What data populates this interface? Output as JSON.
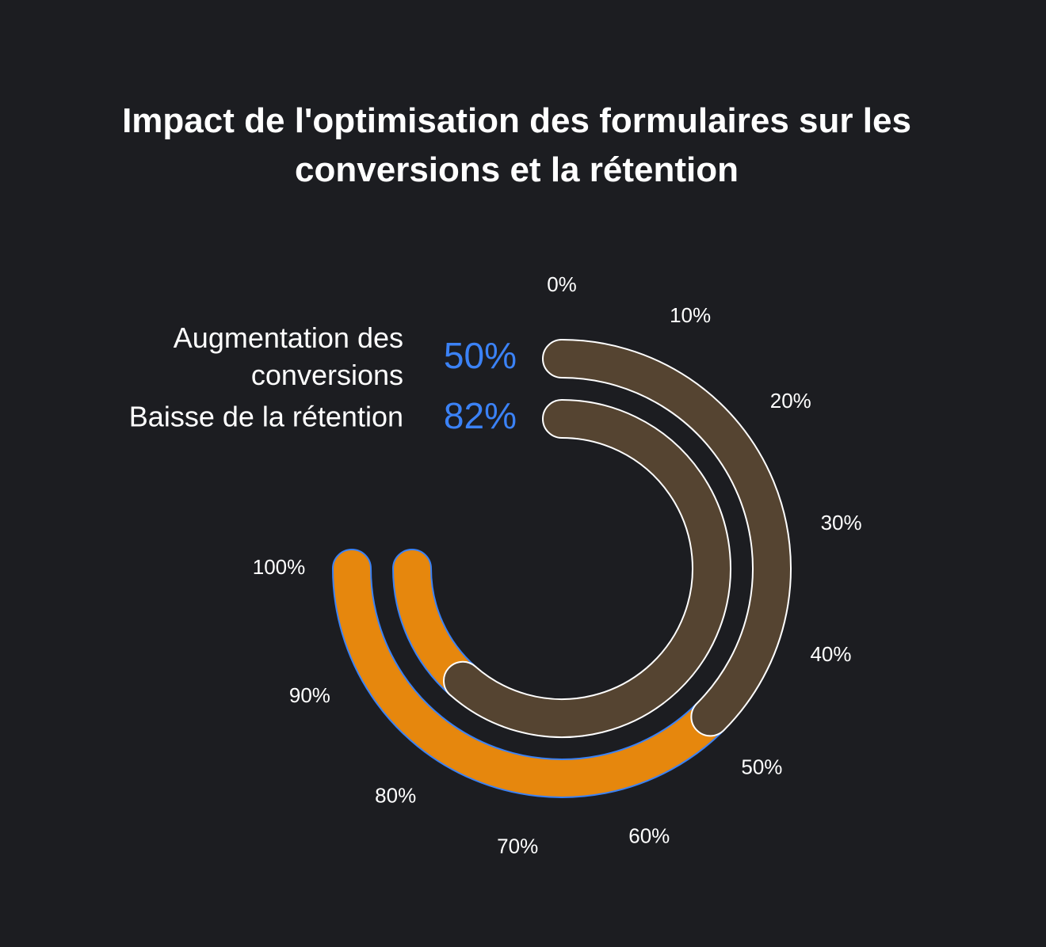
{
  "chart_data": {
    "type": "radial-bar",
    "title_lines": [
      "Impact de l'optimisation des formulaires sur les",
      "conversions et la rétention"
    ],
    "axis": {
      "min": 0,
      "max": 100,
      "tick_labels": [
        "0%",
        "10%",
        "20%",
        "30%",
        "40%",
        "50%",
        "60%",
        "70%",
        "80%",
        "90%",
        "100%"
      ]
    },
    "series": [
      {
        "label_lines": [
          "Augmentation des",
          "conversions"
        ],
        "value": 50,
        "value_label": "50%"
      },
      {
        "label_lines": [
          "Baisse de la rétention"
        ],
        "value": 82,
        "value_label": "82%"
      }
    ],
    "colors": {
      "background": "#1c1d21",
      "value_fill": "#e6870d",
      "value_stroke": "#3b82f6",
      "track_fill": "#554431",
      "track_stroke": "#ffffff",
      "value_text": "#3b82f6",
      "text": "#ffffff"
    }
  }
}
